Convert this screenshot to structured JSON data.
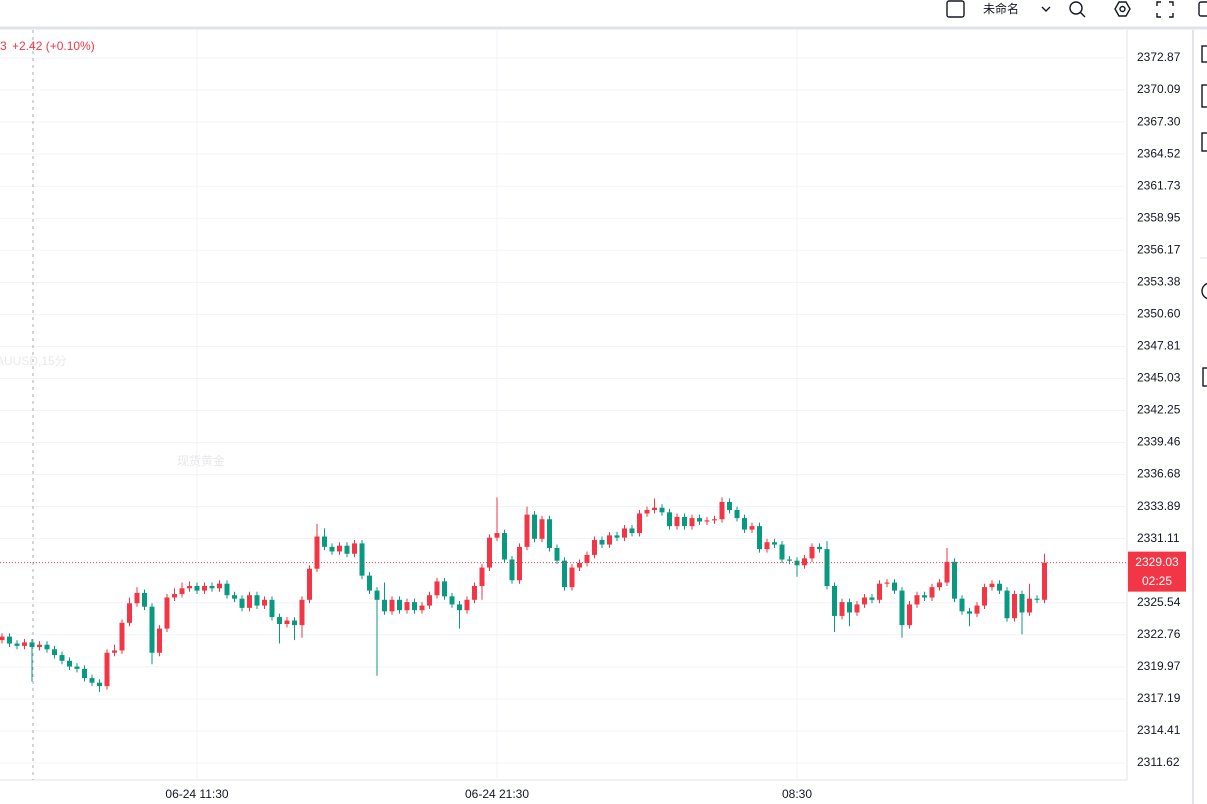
{
  "toolbar": {
    "layout_name": "未命名"
  },
  "chart_data": {
    "type": "candlestick",
    "watermark": "XAUUSD,15分",
    "watermark_subtitle": "现货黄金",
    "legend_fragment": "3",
    "legend_change": "+2.42 (+0.10%)",
    "last_price_countdown": "02:25",
    "up_color": "#f23645",
    "down_color": "#089981",
    "grid": true,
    "ylim": [
      2310.32,
      2375.3
    ],
    "yticks": [
      2372.87,
      2370.09,
      {
        "value": 2367.3,
        "label": "2367.30"
      },
      2364.52,
      2361.73,
      2358.95,
      2356.17,
      2353.38,
      {
        "value": 2350.6,
        "label": "2350.60"
      },
      2347.81,
      2345.03,
      2342.25,
      2339.46,
      2336.68,
      2333.89,
      2331.11,
      2325.54,
      2322.76,
      2319.97,
      2317.19,
      2314.41,
      2311.62
    ],
    "xticks": [
      {
        "value": 26,
        "label": "06-24 11:30"
      },
      {
        "value": 66,
        "label": "06-24 21:30"
      },
      {
        "value": 106,
        "label": "08:30"
      }
    ],
    "open": [
      2322.3,
      2322.6,
      2322.0,
      2321.8,
      2322.1,
      2321.7,
      2321.9,
      2321.5,
      2321.0,
      2320.5,
      2320.0,
      2319.8,
      2319.0,
      2318.6,
      2318.3,
      2321.2,
      2321.4,
      2323.8,
      2325.5,
      2326.4,
      2325.2,
      2321.2,
      2323.3,
      2326.0,
      2326.3,
      2326.8,
      2327.0,
      2326.6,
      2327.0,
      2326.8,
      2327.2,
      2326.2,
      2325.9,
      2325.1,
      2326.2,
      2325.3,
      2325.8,
      2324.3,
      2323.7,
      2324.0,
      2323.6,
      2325.8,
      2328.5,
      2331.3,
      2330.4,
      2330.0,
      2330.5,
      2329.8,
      2330.7,
      2327.9,
      2326.6,
      2325.8,
      2324.8,
      2325.8,
      2324.9,
      2325.6,
      2324.9,
      2325.3,
      2326.2,
      2327.4,
      2326.1,
      2325.4,
      2324.9,
      2325.8,
      2327.0,
      2328.6,
      2331.2,
      2331.6,
      2329.3,
      2327.5,
      2330.4,
      2333.2,
      2331.1,
      2332.8,
      2330.3,
      2329.2,
      2326.9,
      2328.6,
      2329.0,
      2329.7,
      2331.0,
      2330.6,
      2331.4,
      2331.2,
      2332.0,
      2331.6,
      2333.3,
      2333.6,
      2333.8,
      2333.4,
      2332.2,
      2333.0,
      2332.2,
      2332.9,
      2332.6,
      2332.7,
      2332.8,
      2334.3,
      2333.6,
      2332.9,
      2331.9,
      2332.2,
      2330.2,
      2330.8,
      2330.6,
      2329.3,
      2329.2,
      2328.8,
      2329.4,
      2330.4,
      2330.2,
      2327.0,
      2324.4,
      2325.6,
      2324.7,
      2325.4,
      2326.0,
      2325.8,
      2327.2,
      2327.3,
      2326.6,
      2323.6,
      2325.4,
      2326.2,
      2326.0,
      2326.9,
      2327.3,
      2329.1,
      2325.9,
      2324.8,
      2324.6,
      2325.3,
      2326.9,
      2327.2,
      2326.6,
      2324.2,
      2326.3,
      2324.7,
      2325.9,
      2325.8
    ],
    "high": [
      2322.9,
      2322.9,
      2322.3,
      2322.4,
      2322.4,
      2322.2,
      2322.2,
      2321.8,
      2321.3,
      2320.8,
      2320.3,
      2320.1,
      2319.3,
      2318.9,
      2321.5,
      2321.9,
      2324.1,
      2326.0,
      2326.9,
      2326.7,
      2325.5,
      2323.6,
      2326.3,
      2326.8,
      2327.3,
      2327.4,
      2327.3,
      2327.3,
      2327.3,
      2327.5,
      2327.5,
      2326.5,
      2326.2,
      2326.5,
      2326.5,
      2326.1,
      2326.1,
      2324.6,
      2324.3,
      2324.3,
      2326.1,
      2328.8,
      2332.4,
      2332.0,
      2330.7,
      2330.8,
      2330.8,
      2331.0,
      2331.0,
      2328.2,
      2326.9,
      2327.3,
      2326.1,
      2326.1,
      2325.9,
      2325.9,
      2325.6,
      2326.5,
      2327.7,
      2327.7,
      2326.4,
      2325.7,
      2326.1,
      2327.3,
      2328.9,
      2331.5,
      2334.7,
      2331.9,
      2329.6,
      2330.7,
      2333.9,
      2333.5,
      2333.1,
      2333.1,
      2330.6,
      2329.5,
      2328.9,
      2329.3,
      2330.0,
      2331.3,
      2331.3,
      2331.7,
      2331.7,
      2332.3,
      2332.3,
      2333.6,
      2333.9,
      2334.6,
      2334.1,
      2333.7,
      2333.3,
      2333.3,
      2333.2,
      2333.2,
      2333.0,
      2333.1,
      2334.7,
      2334.6,
      2333.9,
      2333.2,
      2332.5,
      2332.5,
      2331.1,
      2331.1,
      2330.9,
      2329.6,
      2329.5,
      2329.7,
      2330.7,
      2330.7,
      2330.9,
      2327.3,
      2325.9,
      2325.9,
      2325.7,
      2326.3,
      2326.3,
      2327.5,
      2327.6,
      2327.6,
      2326.9,
      2325.7,
      2326.5,
      2326.5,
      2327.2,
      2327.6,
      2330.3,
      2329.4,
      2326.2,
      2325.1,
      2325.6,
      2327.2,
      2327.5,
      2327.5,
      2326.9,
      2326.6,
      2326.6,
      2327.2,
      2326.2,
      2329.8
    ],
    "low": [
      2322.0,
      2321.7,
      2321.5,
      2321.5,
      2318.7,
      2321.4,
      2321.2,
      2320.7,
      2320.2,
      2319.7,
      2319.5,
      2318.7,
      2318.3,
      2317.8,
      2318.0,
      2320.9,
      2321.1,
      2323.5,
      2325.2,
      2324.9,
      2320.2,
      2320.9,
      2323.0,
      2325.7,
      2326.0,
      2326.5,
      2326.3,
      2326.3,
      2326.5,
      2326.5,
      2325.9,
      2325.6,
      2324.8,
      2324.8,
      2325.0,
      2325.0,
      2324.0,
      2322.0,
      2323.4,
      2322.3,
      2322.5,
      2325.5,
      2328.2,
      2330.1,
      2329.7,
      2329.7,
      2329.5,
      2329.5,
      2327.6,
      2326.3,
      2319.2,
      2324.5,
      2324.5,
      2324.6,
      2324.6,
      2324.6,
      2324.6,
      2325.0,
      2325.9,
      2325.8,
      2325.1,
      2323.3,
      2324.6,
      2325.5,
      2325.8,
      2328.3,
      2330.9,
      2329.0,
      2327.2,
      2327.2,
      2330.1,
      2330.8,
      2330.8,
      2330.0,
      2328.9,
      2326.6,
      2326.6,
      2328.3,
      2328.7,
      2329.4,
      2330.3,
      2330.3,
      2330.9,
      2330.9,
      2331.3,
      2331.3,
      2333.0,
      2333.3,
      2333.1,
      2331.9,
      2331.9,
      2331.9,
      2331.9,
      2332.3,
      2332.3,
      2332.4,
      2332.5,
      2333.3,
      2332.6,
      2331.6,
      2331.6,
      2329.9,
      2329.9,
      2330.3,
      2329.0,
      2328.9,
      2327.8,
      2328.5,
      2329.1,
      2329.9,
      2326.7,
      2323.0,
      2324.1,
      2323.5,
      2324.4,
      2325.1,
      2325.5,
      2325.5,
      2326.9,
      2326.3,
      2322.5,
      2323.3,
      2325.1,
      2325.7,
      2325.7,
      2326.6,
      2327.0,
      2325.6,
      2324.5,
      2323.5,
      2324.3,
      2325.0,
      2326.6,
      2326.3,
      2323.9,
      2323.9,
      2322.8,
      2324.4,
      2325.5,
      2325.5
    ],
    "close": [
      2322.6,
      2322.0,
      2321.8,
      2322.1,
      2321.7,
      2321.9,
      2321.5,
      2321.0,
      2320.5,
      2320.0,
      2319.8,
      2319.0,
      2318.6,
      2318.3,
      2321.2,
      2321.4,
      2323.8,
      2325.5,
      2326.4,
      2325.2,
      2321.2,
      2323.3,
      2326.0,
      2326.3,
      2326.8,
      2327.0,
      2326.6,
      2327.0,
      2326.8,
      2327.2,
      2326.2,
      2325.9,
      2325.1,
      2326.2,
      2325.3,
      2325.8,
      2324.3,
      2323.7,
      2324.0,
      2323.6,
      2325.8,
      2328.5,
      2331.3,
      2330.4,
      2330.0,
      2330.5,
      2329.8,
      2330.7,
      2327.9,
      2326.6,
      2325.8,
      2324.8,
      2325.8,
      2324.9,
      2325.6,
      2324.9,
      2325.3,
      2326.2,
      2327.4,
      2326.1,
      2325.4,
      2324.9,
      2325.8,
      2327.0,
      2328.6,
      2331.2,
      2331.6,
      2329.3,
      2327.5,
      2330.4,
      2333.2,
      2331.1,
      2332.8,
      2330.3,
      2329.2,
      2326.9,
      2328.6,
      2329.0,
      2329.7,
      2331.0,
      2330.6,
      2331.4,
      2331.2,
      2332.0,
      2331.6,
      2333.3,
      2333.6,
      2333.8,
      2333.4,
      2332.2,
      2333.0,
      2332.2,
      2332.9,
      2332.6,
      2332.7,
      2332.8,
      2334.3,
      2333.6,
      2332.9,
      2331.9,
      2332.2,
      2330.2,
      2330.8,
      2330.6,
      2329.3,
      2329.2,
      2328.8,
      2329.4,
      2330.4,
      2330.2,
      2327.0,
      2324.4,
      2325.6,
      2324.7,
      2325.4,
      2326.0,
      2325.8,
      2327.2,
      2327.3,
      2326.6,
      2323.6,
      2325.4,
      2326.2,
      2326.0,
      2326.9,
      2327.3,
      2329.1,
      2325.9,
      2324.8,
      2324.6,
      2325.3,
      2326.9,
      2327.2,
      2326.6,
      2324.2,
      2326.3,
      2324.7,
      2325.9,
      2325.8,
      2329.03
    ]
  }
}
